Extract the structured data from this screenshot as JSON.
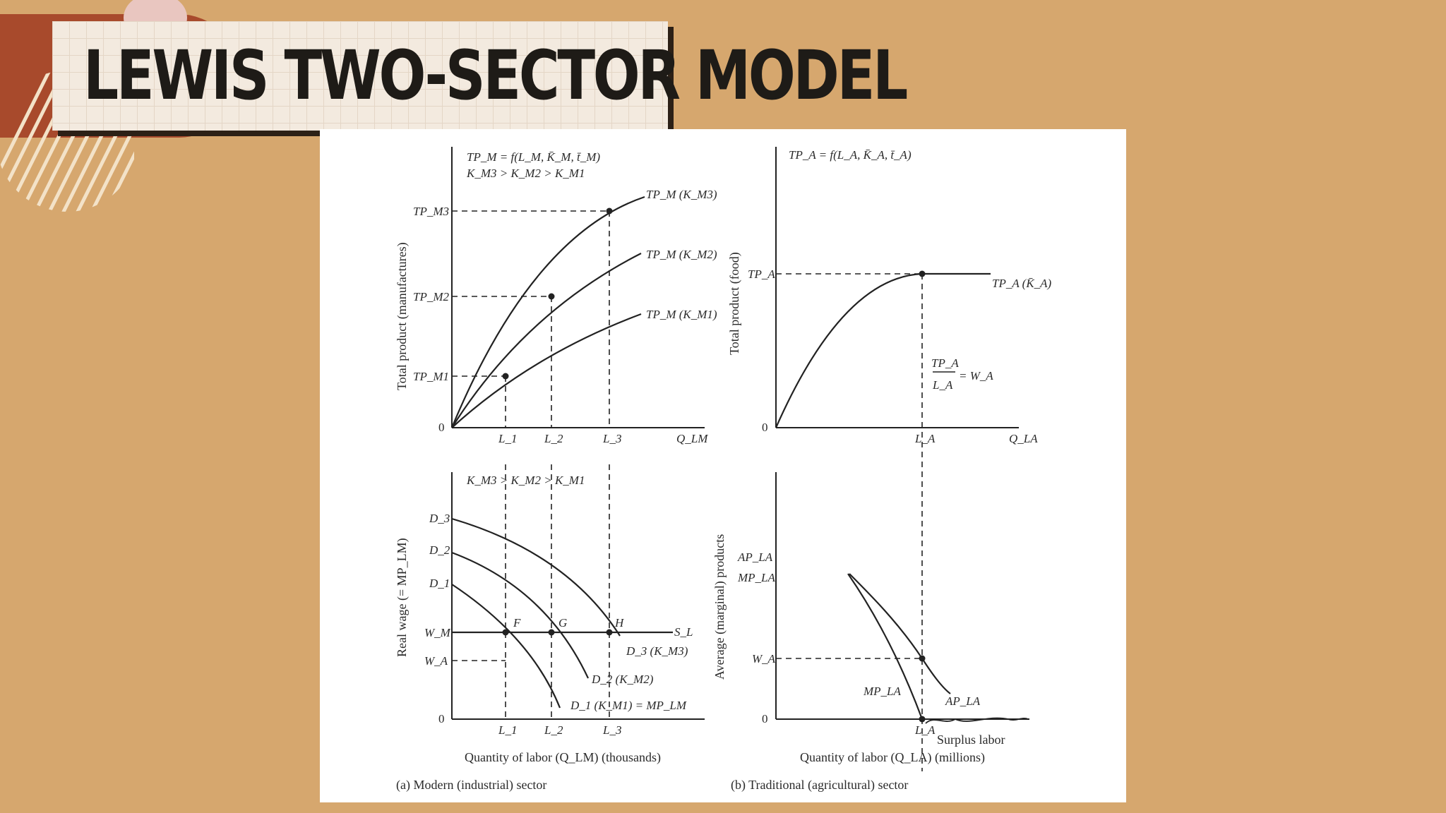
{
  "title": "LEWIS TWO-SECTOR MODEL",
  "panel_a_top": {
    "eq1": "TP_M = f(L_M, K̄_M, t̄_M)",
    "eq2": "K_M3 > K_M2 > K_M1",
    "ylabel": "Total product (manufactures)",
    "origin": "0",
    "y_ticks": [
      "TP_M3",
      "TP_M2",
      "TP_M1"
    ],
    "x_ticks": [
      "L_1",
      "L_2",
      "L_3"
    ],
    "x_axis": "Q_LM",
    "curves": [
      "TP_M (K_M3)",
      "TP_M (K_M2)",
      "TP_M (K_M1)"
    ]
  },
  "panel_a_bottom": {
    "eq": "K_M3 > K_M2 > K_M1",
    "ylabel": "Real wage (= MP_LM)",
    "origin": "0",
    "y_ticks": [
      "D_3",
      "D_2",
      "D_1",
      "W_M",
      "W_A"
    ],
    "x_ticks": [
      "L_1",
      "L_2",
      "L_3"
    ],
    "points": [
      "F",
      "G",
      "H"
    ],
    "supply": "S_L",
    "curves": [
      "D_3 (K_M3)",
      "D_2 (K_M2)",
      "D_1 (K_M1) = MP_LM"
    ],
    "xlabel": "Quantity of labor (Q_LM) (thousands)",
    "caption": "(a) Modern (industrial) sector"
  },
  "panel_b_top": {
    "eq": "TP_A = f(L_A, K̄_A, t̄_A)",
    "ylabel": "Total product (food)",
    "origin": "0",
    "y_tick": "TP_A",
    "curve": "TP_A (K̄_A)",
    "ratio_num": "TP_A",
    "ratio_den": "L_A",
    "ratio_rhs": "= W_A",
    "x_tick": "L_A",
    "x_axis": "Q_LA"
  },
  "panel_b_bottom": {
    "ylabel": "Average (marginal) products",
    "y_ticks": [
      "AP_LA",
      "MP_LA",
      "W_A"
    ],
    "origin": "0",
    "curves": [
      "MP_LA",
      "AP_LA"
    ],
    "x_tick": "L_A",
    "surplus": "Surplus labor",
    "xlabel": "Quantity of labor (Q_LA) (millions)",
    "caption": "(b) Traditional (agricultural) sector"
  }
}
